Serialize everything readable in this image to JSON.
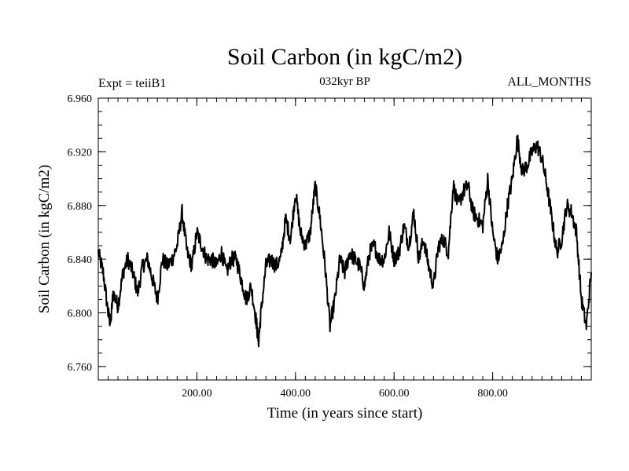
{
  "header": {
    "title": "Soil Carbon (in kgC/m2)",
    "subtitle": "032kyr BP",
    "left_label": "Expt = teiiB1",
    "right_label": "ALL_MONTHS"
  },
  "chart_data": {
    "type": "line",
    "title": "Soil Carbon (in kgC/m2)",
    "subtitle": "032kyr BP",
    "xlabel": "Time (in years since start)",
    "ylabel": "Soil Carbon (in kgC/m2)",
    "xlim": [
      0,
      1000
    ],
    "ylim": [
      6.75,
      6.96
    ],
    "xticks": [
      200,
      400,
      600,
      800
    ],
    "xtick_labels": [
      "200.00",
      "400.00",
      "600.00",
      "800.00"
    ],
    "yticks": [
      6.76,
      6.8,
      6.84,
      6.88,
      6.92,
      6.96
    ],
    "ytick_labels": [
      "6.760",
      "6.800",
      "6.840",
      "6.880",
      "6.920",
      "6.960"
    ],
    "grid": false,
    "line_color": "#000000",
    "series": [
      {
        "x": [
          0,
          10,
          20,
          25,
          30,
          40,
          50,
          60,
          70,
          80,
          90,
          100,
          110,
          120,
          130,
          140,
          150,
          160,
          170,
          180,
          190,
          200,
          210,
          220,
          230,
          240,
          250,
          260,
          270,
          280,
          290,
          300,
          310,
          320,
          325,
          330,
          340,
          350,
          360,
          370,
          380,
          390,
          400,
          410,
          420,
          430,
          440,
          450,
          460,
          470,
          480,
          490,
          500,
          510,
          520,
          530,
          540,
          550,
          560,
          570,
          580,
          590,
          600,
          610,
          620,
          630,
          640,
          650,
          660,
          670,
          680,
          690,
          700,
          710,
          720,
          730,
          740,
          750,
          760,
          770,
          780,
          790,
          800,
          810,
          820,
          830,
          840,
          850,
          860,
          870,
          880,
          890,
          900,
          910,
          920,
          930,
          940,
          950,
          960,
          970,
          980,
          990,
          1000
        ],
        "y": [
          6.845,
          6.83,
          6.8,
          6.792,
          6.815,
          6.805,
          6.83,
          6.84,
          6.83,
          6.815,
          6.835,
          6.84,
          6.825,
          6.81,
          6.84,
          6.835,
          6.84,
          6.85,
          6.875,
          6.845,
          6.835,
          6.86,
          6.85,
          6.84,
          6.84,
          6.835,
          6.845,
          6.83,
          6.84,
          6.84,
          6.825,
          6.81,
          6.82,
          6.795,
          6.778,
          6.8,
          6.835,
          6.84,
          6.835,
          6.84,
          6.87,
          6.855,
          6.89,
          6.86,
          6.85,
          6.86,
          6.895,
          6.87,
          6.835,
          6.79,
          6.81,
          6.84,
          6.83,
          6.845,
          6.84,
          6.835,
          6.82,
          6.845,
          6.85,
          6.84,
          6.84,
          6.86,
          6.84,
          6.845,
          6.865,
          6.85,
          6.875,
          6.84,
          6.855,
          6.835,
          6.82,
          6.85,
          6.855,
          6.845,
          6.895,
          6.88,
          6.89,
          6.895,
          6.875,
          6.87,
          6.865,
          6.9,
          6.86,
          6.84,
          6.85,
          6.88,
          6.9,
          6.93,
          6.905,
          6.91,
          6.92,
          6.925,
          6.915,
          6.895,
          6.87,
          6.845,
          6.855,
          6.88,
          6.875,
          6.86,
          6.81,
          6.79,
          6.83
        ]
      }
    ]
  }
}
